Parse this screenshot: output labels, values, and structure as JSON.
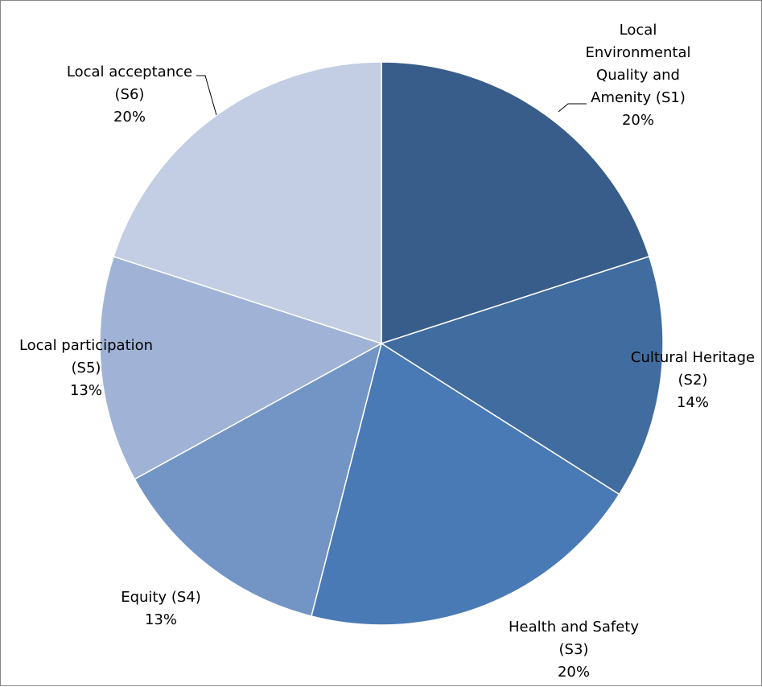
{
  "chart_data": {
    "type": "pie",
    "title": "",
    "slices": [
      {
        "name_lines": [
          "Local",
          "Environmental",
          "Quality and",
          "Amenity (S1)"
        ],
        "value": 20,
        "pct_label": "20%",
        "color": "#385D8A"
      },
      {
        "name_lines": [
          "Cultural Heritage",
          "(S2)"
        ],
        "value": 14,
        "pct_label": "14%",
        "color": "#416C9F"
      },
      {
        "name_lines": [
          "Health and Safety",
          "(S3)"
        ],
        "value": 20,
        "pct_label": "20%",
        "color": "#4A7AB5"
      },
      {
        "name_lines": [
          "Equity (S4)"
        ],
        "value": 13,
        "pct_label": "13%",
        "color": "#7395C6"
      },
      {
        "name_lines": [
          "Local participation",
          "(S5)"
        ],
        "value": 13,
        "pct_label": "13%",
        "color": "#A0B3D6"
      },
      {
        "name_lines": [
          "Local acceptance",
          "(S6)"
        ],
        "value": 20,
        "pct_label": "20%",
        "color": "#C3CDE3"
      }
    ],
    "start_angle_deg": 0,
    "direction": "clockwise",
    "legend": "none",
    "data_labels": "outside"
  }
}
